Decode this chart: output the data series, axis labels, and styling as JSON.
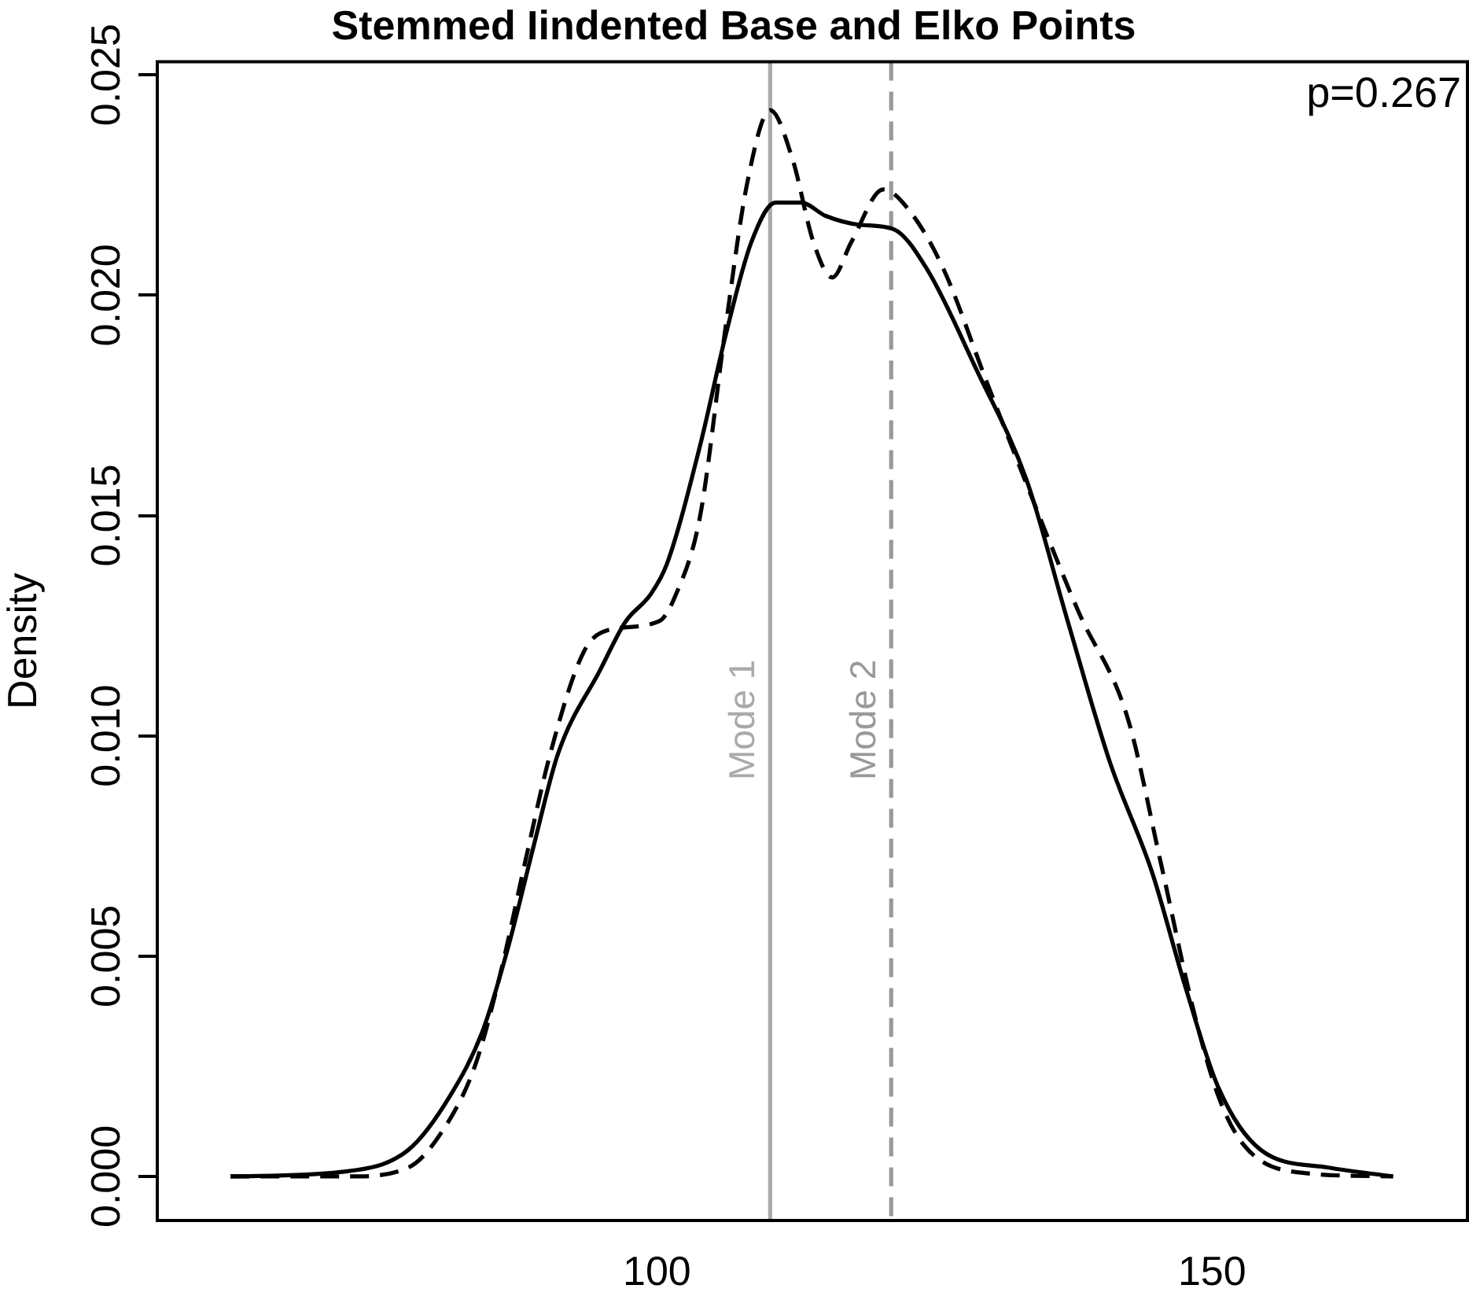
{
  "chart_data": {
    "type": "line",
    "title": "Stemmed Iindented Base and Elko Points",
    "ylabel": "Density",
    "xlim": [
      55,
      173
    ],
    "ylim": [
      -0.001,
      0.0253
    ],
    "xticks": [
      100,
      150
    ],
    "yticks": [
      {
        "value": 0,
        "label": "0.000"
      },
      {
        "value": 0.005,
        "label": "0.005"
      },
      {
        "value": 0.01,
        "label": "0.010"
      },
      {
        "value": 0.015,
        "label": "0.015"
      },
      {
        "value": 0.02,
        "label": "0.020"
      },
      {
        "value": 0.025,
        "label": "0.025"
      }
    ],
    "annotations": [
      "p=0.267"
    ],
    "ref_lines": [
      {
        "axis": "x",
        "value": 110.2,
        "label": "Mode 1",
        "color": "#aaaaaa",
        "line_style": "solid"
      },
      {
        "axis": "x",
        "value": 121.1,
        "label": "Mode 2",
        "color": "#999999",
        "line_style": "dashed"
      }
    ],
    "series": [
      {
        "color": "#000000",
        "line_style": "solid",
        "x": [
          61.6,
          71.5,
          77.6,
          81.3,
          84.3,
          86.6,
          88.9,
          91.1,
          94.9,
          97.2,
          99.4,
          100.9,
          103.9,
          106.2,
          108.5,
          110.7,
          113.0,
          115.2,
          118.2,
          121.3,
          124.3,
          128.8,
          133.3,
          137.0,
          140.8,
          144.6,
          147.6,
          150.6,
          154.4,
          160.5,
          166.3
        ],
        "values": [
          0,
          0.0001,
          0.0006,
          0.0018,
          0.0033,
          0.0052,
          0.0075,
          0.0096,
          0.0115,
          0.0126,
          0.0132,
          0.0139,
          0.0166,
          0.0191,
          0.0212,
          0.0221,
          0.0221,
          0.0218,
          0.0216,
          0.0215,
          0.0206,
          0.0183,
          0.0158,
          0.0126,
          0.0094,
          0.0069,
          0.0043,
          0.002,
          0.0006,
          0.0002,
          0
        ]
      },
      {
        "color": "#000000",
        "line_style": "dashed",
        "x": [
          61.6,
          72.3,
          77.6,
          80.6,
          83.6,
          85.9,
          88.1,
          90.4,
          93.4,
          95.6,
          100.2,
          101.7,
          103.9,
          106.2,
          108.1,
          110.2,
          112.2,
          114.1,
          115.8,
          117.5,
          120.4,
          122.8,
          125.8,
          129.6,
          134.1,
          138.0,
          142.4,
          145.4,
          148.4,
          150.6,
          152.9,
          157.5,
          166.3
        ],
        "values": [
          0,
          0,
          0.0002,
          0.001,
          0.0025,
          0.0046,
          0.0071,
          0.0096,
          0.0119,
          0.0124,
          0.0126,
          0.0132,
          0.015,
          0.0193,
          0.0225,
          0.0242,
          0.0231,
          0.0212,
          0.0204,
          0.0212,
          0.0224,
          0.0219,
          0.0206,
          0.0181,
          0.0152,
          0.0128,
          0.0104,
          0.0071,
          0.0037,
          0.0018,
          0.0007,
          0.0001,
          0
        ]
      }
    ]
  }
}
